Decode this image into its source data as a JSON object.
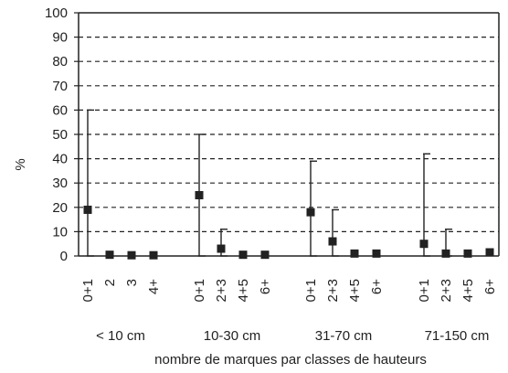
{
  "chart_data": {
    "type": "scatter",
    "title": "",
    "xlabel": "nombre de marques par classes de hauteurs",
    "ylabel": "%",
    "ylim": [
      0,
      100
    ],
    "yticks": [
      0,
      10,
      20,
      30,
      40,
      50,
      60,
      70,
      80,
      90,
      100
    ],
    "grid": true,
    "groups": [
      {
        "label": "< 10 cm",
        "categories": [
          "0+1",
          "2",
          "3",
          "4+"
        ],
        "values": [
          19,
          0.5,
          0.3,
          0.3
        ],
        "error_high": [
          60,
          null,
          null,
          null
        ]
      },
      {
        "label": "10-30 cm",
        "categories": [
          "0+1",
          "2+3",
          "4+5",
          "6+"
        ],
        "values": [
          25,
          3,
          0.5,
          0.5
        ],
        "error_high": [
          50,
          11,
          null,
          null
        ]
      },
      {
        "label": "31-70 cm",
        "categories": [
          "0+1",
          "2+3",
          "4+5",
          "6+"
        ],
        "values": [
          18,
          6,
          1,
          1
        ],
        "error_high": [
          39,
          19,
          null,
          null
        ]
      },
      {
        "label": "71-150 cm",
        "categories": [
          "0+1",
          "2+3",
          "4+5",
          "6+"
        ],
        "values": [
          5,
          1,
          1,
          1.5
        ],
        "error_high": [
          42,
          11,
          null,
          null
        ]
      }
    ]
  }
}
